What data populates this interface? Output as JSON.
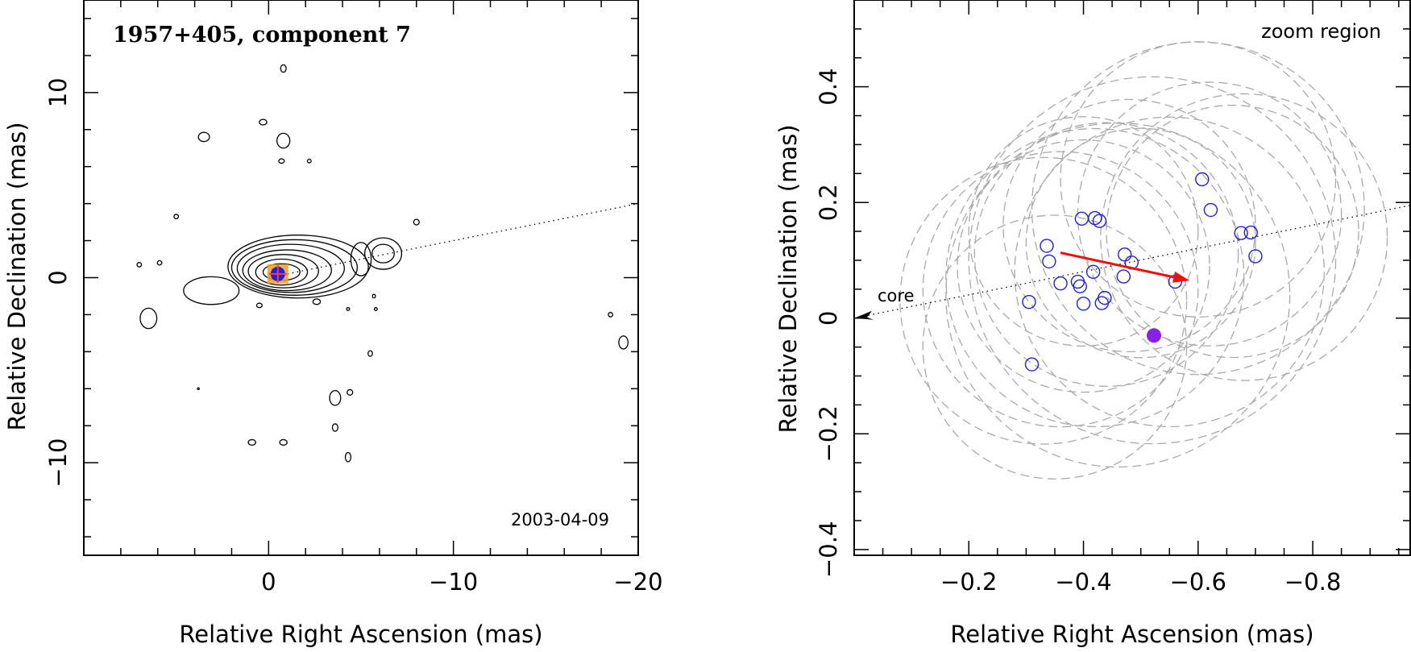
{
  "chart_data": [
    {
      "type": "scatter",
      "title": "1957+405, component 7",
      "date_label": "2003-04-09",
      "xlabel": "Relative Right Ascension (mas)",
      "ylabel": "Relative Declination (mas)",
      "xlim": [
        10,
        -20
      ],
      "ylim": [
        -15,
        15
      ],
      "xticks": [
        0,
        -10,
        -20
      ],
      "yticks": [
        10,
        0,
        -10
      ],
      "xtick_labels": [
        "0",
        "−10",
        "−20"
      ],
      "ytick_labels": [
        "10",
        "0",
        "−10"
      ],
      "grid": false,
      "jet_axis": {
        "from": [
          0,
          0
        ],
        "to": [
          -20,
          4.0
        ]
      },
      "component_marker": {
        "x": -0.5,
        "y": 0.2
      },
      "contours": [
        {
          "kind": "ellipse",
          "cx": -0.7,
          "cy": 0.3,
          "rx": 1.0,
          "ry": 0.45
        },
        {
          "kind": "ellipse",
          "cx": -0.7,
          "cy": 0.3,
          "rx": 1.4,
          "ry": 0.7
        },
        {
          "kind": "ellipse",
          "cx": -0.8,
          "cy": 0.35,
          "rx": 1.9,
          "ry": 0.9
        },
        {
          "kind": "ellipse",
          "cx": -1.0,
          "cy": 0.4,
          "rx": 2.4,
          "ry": 1.1
        },
        {
          "kind": "ellipse",
          "cx": -1.2,
          "cy": 0.5,
          "rx": 2.9,
          "ry": 1.3
        },
        {
          "kind": "ellipse",
          "cx": -1.4,
          "cy": 0.55,
          "rx": 3.4,
          "ry": 1.5
        },
        {
          "kind": "ellipse",
          "cx": -1.6,
          "cy": 0.6,
          "rx": 3.8,
          "ry": 1.7
        },
        {
          "kind": "ellipse",
          "cx": 3.1,
          "cy": -0.7,
          "rx": 1.5,
          "ry": 0.75
        },
        {
          "kind": "ellipse",
          "cx": -6.2,
          "cy": 1.3,
          "rx": 0.6,
          "ry": 0.5
        },
        {
          "kind": "ellipse",
          "cx": -6.2,
          "cy": 1.3,
          "rx": 1.0,
          "ry": 0.85
        },
        {
          "kind": "ellipse",
          "cx": -5.0,
          "cy": 1.0,
          "rx": 0.55,
          "ry": 0.9
        },
        {
          "kind": "ellipse",
          "cx": 6.5,
          "cy": -2.2,
          "rx": 0.45,
          "ry": 0.55
        },
        {
          "kind": "ellipse",
          "cx": -0.8,
          "cy": 7.4,
          "rx": 0.35,
          "ry": 0.4
        },
        {
          "kind": "ellipse",
          "cx": -3.6,
          "cy": -6.5,
          "rx": 0.3,
          "ry": 0.4
        },
        {
          "kind": "ellipse",
          "cx": 3.5,
          "cy": 7.6,
          "rx": 0.3,
          "ry": 0.25
        },
        {
          "kind": "ellipse",
          "cx": -0.8,
          "cy": 11.3,
          "rx": 0.15,
          "ry": 0.2
        },
        {
          "kind": "ellipse",
          "cx": 0.3,
          "cy": 8.4,
          "rx": 0.2,
          "ry": 0.15
        },
        {
          "kind": "ellipse",
          "cx": -0.7,
          "cy": 6.3,
          "rx": 0.15,
          "ry": 0.12
        },
        {
          "kind": "ellipse",
          "cx": -2.2,
          "cy": 6.3,
          "rx": 0.1,
          "ry": 0.1
        },
        {
          "kind": "ellipse",
          "cx": -8.0,
          "cy": 3.0,
          "rx": 0.15,
          "ry": 0.15
        },
        {
          "kind": "ellipse",
          "cx": 5.0,
          "cy": 3.3,
          "rx": 0.12,
          "ry": 0.12
        },
        {
          "kind": "ellipse",
          "cx": 7.0,
          "cy": 0.7,
          "rx": 0.12,
          "ry": 0.12
        },
        {
          "kind": "ellipse",
          "cx": 5.9,
          "cy": 0.8,
          "rx": 0.12,
          "ry": 0.12
        },
        {
          "kind": "ellipse",
          "cx": -19.2,
          "cy": -3.5,
          "rx": 0.25,
          "ry": 0.35
        },
        {
          "kind": "ellipse",
          "cx": -18.5,
          "cy": -2.0,
          "rx": 0.12,
          "ry": 0.12
        },
        {
          "kind": "ellipse",
          "cx": -4.4,
          "cy": -6.2,
          "rx": 0.15,
          "ry": 0.15
        },
        {
          "kind": "ellipse",
          "cx": -3.6,
          "cy": -8.1,
          "rx": 0.15,
          "ry": 0.2
        },
        {
          "kind": "ellipse",
          "cx": -4.3,
          "cy": -9.7,
          "rx": 0.15,
          "ry": 0.25
        },
        {
          "kind": "ellipse",
          "cx": 0.9,
          "cy": -8.9,
          "rx": 0.2,
          "ry": 0.15
        },
        {
          "kind": "ellipse",
          "cx": -0.8,
          "cy": -8.9,
          "rx": 0.2,
          "ry": 0.15
        },
        {
          "kind": "ellipse",
          "cx": -5.5,
          "cy": -4.1,
          "rx": 0.12,
          "ry": 0.15
        },
        {
          "kind": "ellipse",
          "cx": -2.6,
          "cy": -1.3,
          "rx": 0.2,
          "ry": 0.15
        },
        {
          "kind": "ellipse",
          "cx": 0.5,
          "cy": -1.5,
          "rx": 0.15,
          "ry": 0.12
        },
        {
          "kind": "ellipse",
          "cx": -4.3,
          "cy": -1.7,
          "rx": 0.08,
          "ry": 0.08
        },
        {
          "kind": "ellipse",
          "cx": -5.8,
          "cy": -1.7,
          "rx": 0.08,
          "ry": 0.08
        },
        {
          "kind": "ellipse",
          "cx": -5.7,
          "cy": -1.0,
          "rx": 0.08,
          "ry": 0.1
        },
        {
          "kind": "ellipse",
          "cx": 3.8,
          "cy": -6.0,
          "rx": 0.05,
          "ry": 0.05
        }
      ]
    },
    {
      "type": "scatter",
      "title": "zoom region",
      "xlabel": "Relative Right Ascension (mas)",
      "ylabel": "Relative Declination (mas)",
      "xlim": [
        0,
        -0.97
      ],
      "ylim": [
        -0.41,
        0.55
      ],
      "xticks": [
        -0.2,
        -0.4,
        -0.6,
        -0.8
      ],
      "yticks": [
        0.4,
        0.2,
        0,
        -0.2,
        -0.4
      ],
      "xtick_labels": [
        "−0.2",
        "−0.4",
        "−0.6",
        "−0.8"
      ],
      "ytick_labels": [
        "0.4",
        "0.2",
        "0",
        "−0.2",
        "−0.4"
      ],
      "grid": false,
      "core_label": "core",
      "jet_axis": {
        "from": [
          0,
          0
        ],
        "to": [
          -0.97,
          0.195
        ]
      },
      "motion_vector": {
        "from": [
          -0.36,
          0.113
        ],
        "to": [
          -0.585,
          0.065
        ]
      },
      "mean_position": {
        "x": -0.523,
        "y": -0.03
      },
      "positions": [
        {
          "x": -0.305,
          "y": 0.028
        },
        {
          "x": -0.31,
          "y": -0.08
        },
        {
          "x": -0.336,
          "y": 0.125
        },
        {
          "x": -0.34,
          "y": 0.098
        },
        {
          "x": -0.36,
          "y": 0.06
        },
        {
          "x": -0.39,
          "y": 0.063
        },
        {
          "x": -0.394,
          "y": 0.055
        },
        {
          "x": -0.397,
          "y": 0.172
        },
        {
          "x": -0.4,
          "y": 0.025
        },
        {
          "x": -0.417,
          "y": 0.08
        },
        {
          "x": -0.42,
          "y": 0.173
        },
        {
          "x": -0.428,
          "y": 0.168
        },
        {
          "x": -0.432,
          "y": 0.026
        },
        {
          "x": -0.437,
          "y": 0.035
        },
        {
          "x": -0.47,
          "y": 0.072
        },
        {
          "x": -0.472,
          "y": 0.11
        },
        {
          "x": -0.484,
          "y": 0.096
        },
        {
          "x": -0.56,
          "y": 0.063
        },
        {
          "x": -0.607,
          "y": 0.24
        },
        {
          "x": -0.622,
          "y": 0.187
        },
        {
          "x": -0.675,
          "y": 0.147
        },
        {
          "x": -0.692,
          "y": 0.148
        },
        {
          "x": -0.7,
          "y": 0.107
        }
      ],
      "error_circles": [
        {
          "cx": -0.4,
          "cy": 0.09,
          "r": 0.22
        },
        {
          "cx": -0.42,
          "cy": 0.07,
          "r": 0.26
        },
        {
          "cx": -0.44,
          "cy": 0.11,
          "r": 0.23
        },
        {
          "cx": -0.36,
          "cy": 0.05,
          "r": 0.24
        },
        {
          "cx": -0.46,
          "cy": 0.04,
          "r": 0.3
        },
        {
          "cx": -0.5,
          "cy": 0.13,
          "r": 0.2
        },
        {
          "cx": -0.55,
          "cy": 0.08,
          "r": 0.27
        },
        {
          "cx": -0.48,
          "cy": 0.16,
          "r": 0.22
        },
        {
          "cx": -0.52,
          "cy": 0.1,
          "r": 0.32
        },
        {
          "cx": -0.6,
          "cy": 0.24,
          "r": 0.24
        },
        {
          "cx": -0.62,
          "cy": 0.18,
          "r": 0.23
        },
        {
          "cx": -0.66,
          "cy": 0.15,
          "r": 0.22
        },
        {
          "cx": -0.68,
          "cy": 0.14,
          "r": 0.25
        },
        {
          "cx": -0.6,
          "cy": 0.19,
          "r": 0.29
        },
        {
          "cx": -0.35,
          "cy": -0.05,
          "r": 0.23
        },
        {
          "cx": -0.33,
          "cy": 0.03,
          "r": 0.25
        },
        {
          "cx": -0.4,
          "cy": 0.15,
          "r": 0.2
        }
      ]
    }
  ],
  "colors": {
    "contour": "#000000",
    "error_circle": "#a9a9a9",
    "position_marker": "#1f1fe0",
    "motion_vector": "#ee1111",
    "mean_position": "#8a1fe8",
    "component_box": "#f0a020"
  }
}
